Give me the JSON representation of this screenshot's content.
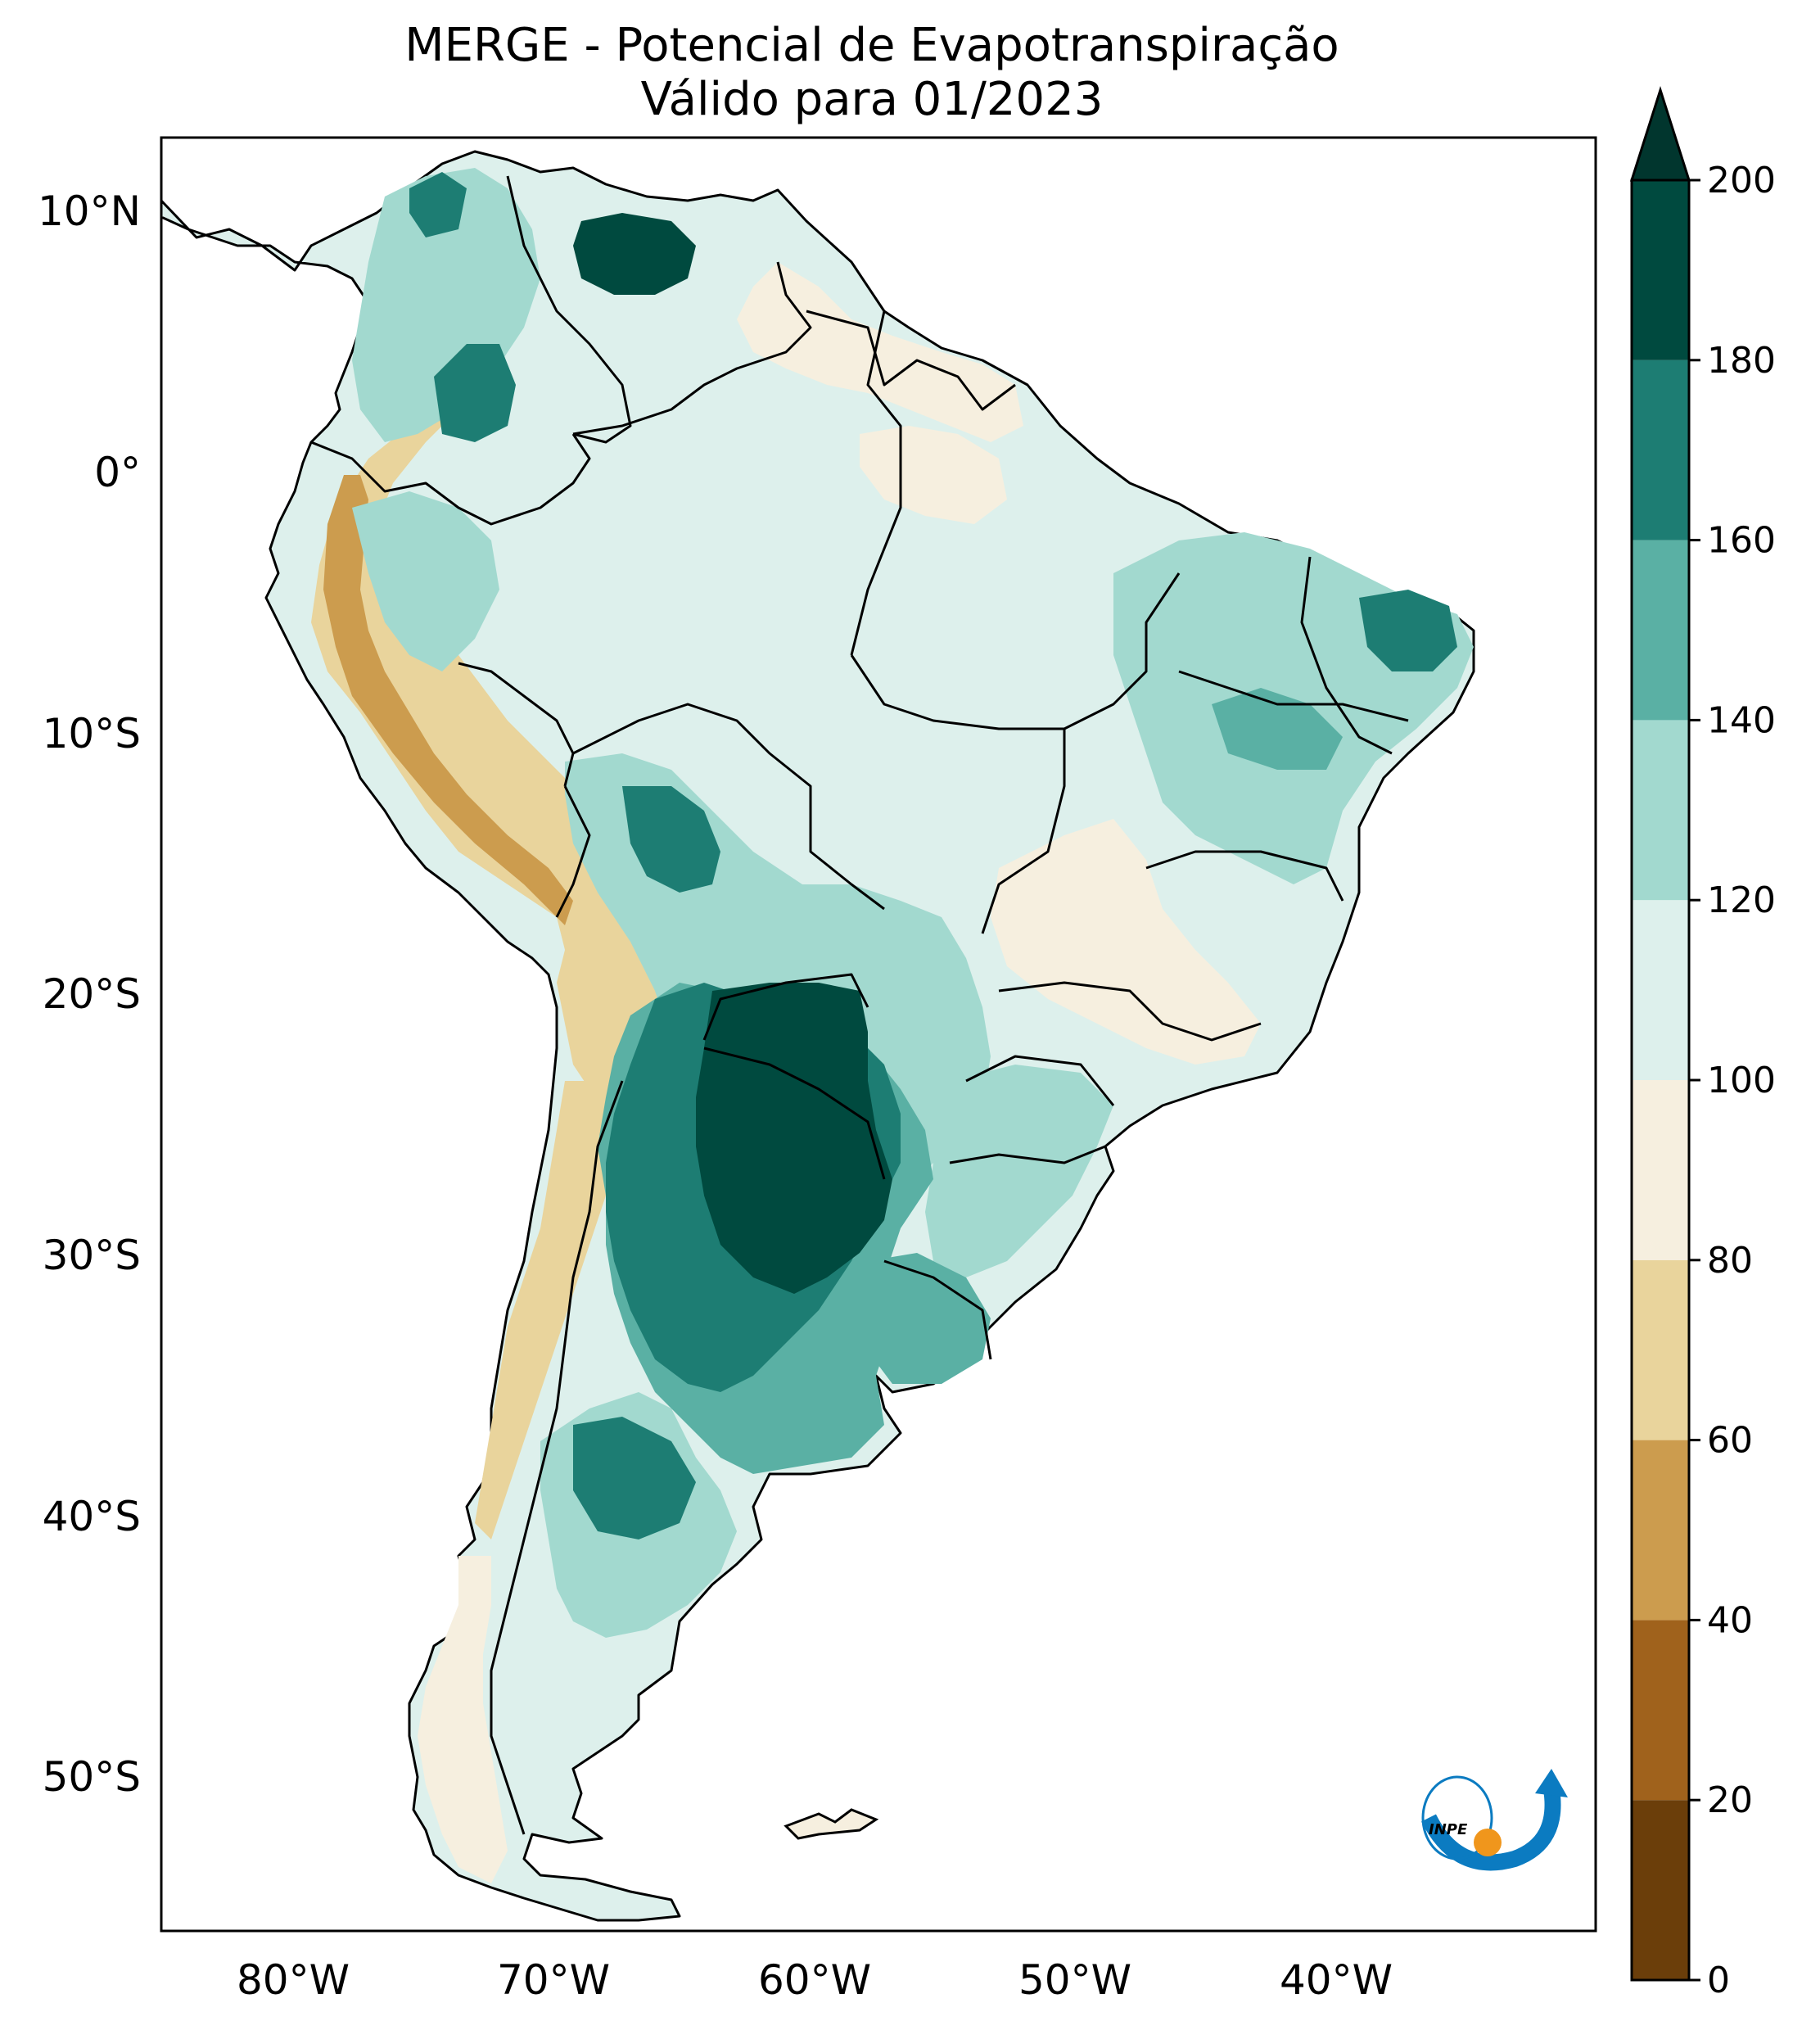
{
  "title": {
    "line1": "MERGE - Potencial de Evapotranspiração",
    "line2": "Válido para 01/2023"
  },
  "map": {
    "lat_range": [
      -56,
      13
    ],
    "lon_range": [
      -85,
      -30
    ],
    "lat_ticks": [
      {
        "value": 10,
        "label": "10°N"
      },
      {
        "value": 0,
        "label": "0°"
      },
      {
        "value": -10,
        "label": "10°S"
      },
      {
        "value": -20,
        "label": "20°S"
      },
      {
        "value": -30,
        "label": "30°S"
      },
      {
        "value": -40,
        "label": "40°S"
      },
      {
        "value": -50,
        "label": "50°S"
      }
    ],
    "lon_ticks": [
      {
        "value": -80,
        "label": "80°W"
      },
      {
        "value": -70,
        "label": "70°W"
      },
      {
        "value": -60,
        "label": "60°W"
      },
      {
        "value": -50,
        "label": "50°W"
      },
      {
        "value": -40,
        "label": "40°W"
      }
    ]
  },
  "colorbar": {
    "min": 0,
    "max": 200,
    "extend": "max",
    "levels": [
      0,
      20,
      40,
      60,
      80,
      100,
      120,
      140,
      160,
      180,
      200
    ],
    "labels": [
      "0",
      "20",
      "40",
      "60",
      "80",
      "100",
      "120",
      "140",
      "160",
      "180",
      "200"
    ],
    "colors": [
      "#6b3e0a",
      "#a0621c",
      "#cc9c4e",
      "#e9d49c",
      "#f6efdf",
      "#ddf0ec",
      "#a2d9cf",
      "#5ab0a4",
      "#1d7d73",
      "#004a3f"
    ],
    "extend_color": "#01362e"
  },
  "logo": {
    "text": "INPE",
    "colors": {
      "blue": "#0b7bc1",
      "orange": "#f0961c"
    }
  }
}
